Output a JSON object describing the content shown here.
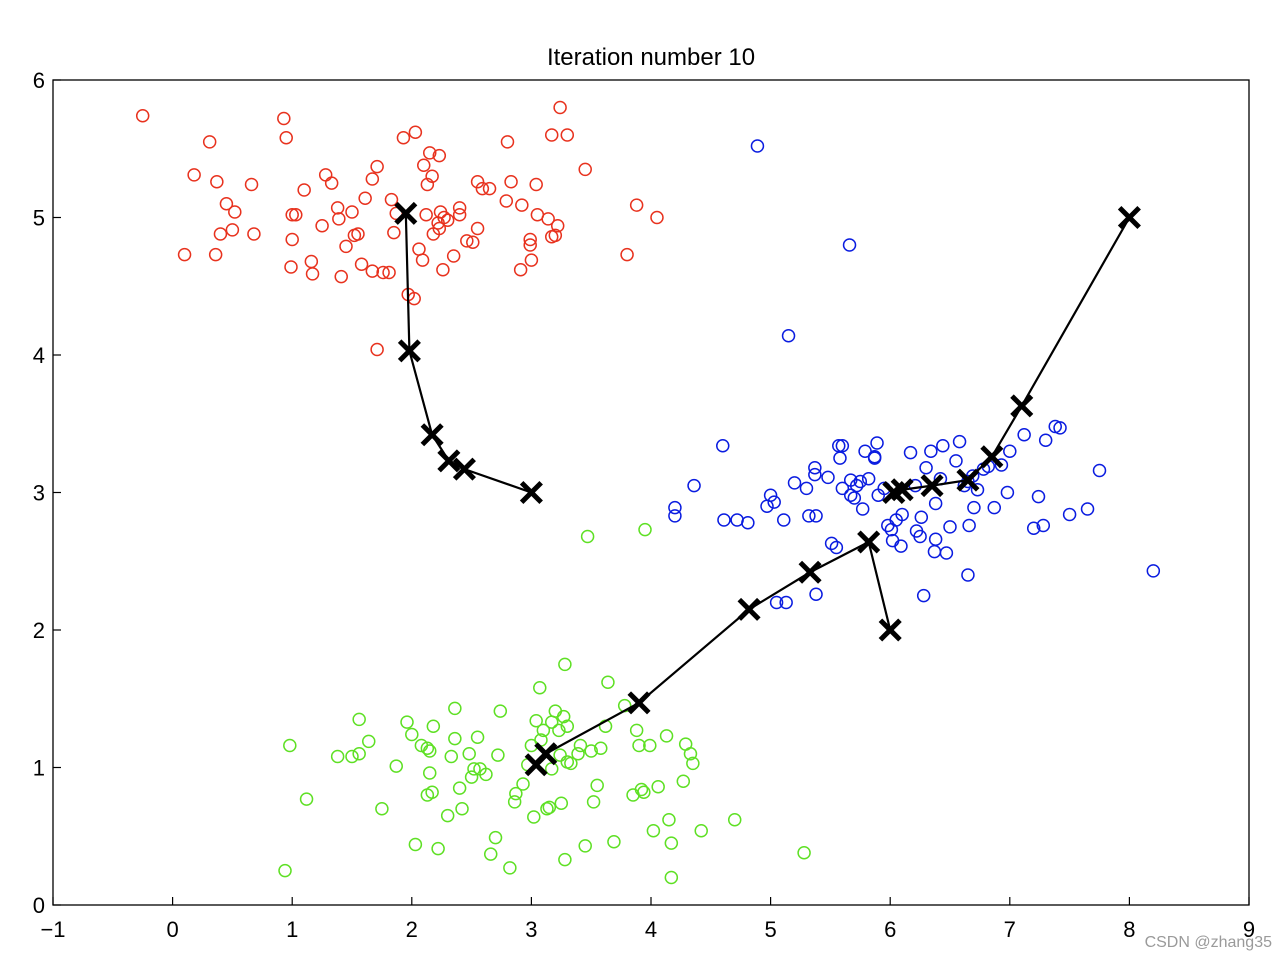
{
  "chart_data": {
    "type": "scatter",
    "title": "Iteration number 10",
    "xlabel": "",
    "ylabel": "",
    "xlim": [
      -1,
      9
    ],
    "ylim": [
      0,
      6
    ],
    "xticks": [
      -1,
      0,
      1,
      2,
      3,
      4,
      5,
      6,
      7,
      8,
      9
    ],
    "yticks": [
      0,
      1,
      2,
      3,
      4,
      5,
      6
    ],
    "grid": false,
    "legend": "none",
    "series": [
      {
        "name": "cluster-1",
        "color": "#e8321e",
        "marker": "circle-open",
        "points": [
          [
            -0.25,
            5.74
          ],
          [
            0.18,
            5.31
          ],
          [
            0.31,
            5.55
          ],
          [
            0.37,
            5.26
          ],
          [
            0.45,
            5.1
          ],
          [
            0.52,
            5.04
          ],
          [
            0.4,
            4.88
          ],
          [
            0.5,
            4.91
          ],
          [
            0.68,
            4.88
          ],
          [
            0.66,
            5.24
          ],
          [
            0.1,
            4.73
          ],
          [
            0.36,
            4.73
          ],
          [
            0.93,
            5.72
          ],
          [
            0.95,
            5.58
          ],
          [
            1.0,
            5.02
          ],
          [
            1.03,
            5.02
          ],
          [
            1.0,
            4.84
          ],
          [
            0.99,
            4.64
          ],
          [
            1.1,
            5.2
          ],
          [
            1.16,
            4.68
          ],
          [
            1.17,
            4.59
          ],
          [
            1.25,
            4.94
          ],
          [
            1.28,
            5.31
          ],
          [
            1.33,
            5.25
          ],
          [
            1.38,
            5.07
          ],
          [
            1.39,
            4.99
          ],
          [
            1.5,
            5.04
          ],
          [
            1.55,
            4.88
          ],
          [
            1.45,
            4.79
          ],
          [
            1.52,
            4.87
          ],
          [
            1.41,
            4.57
          ],
          [
            1.58,
            4.66
          ],
          [
            1.61,
            5.14
          ],
          [
            1.67,
            5.28
          ],
          [
            1.71,
            5.37
          ],
          [
            1.67,
            4.61
          ],
          [
            1.76,
            4.6
          ],
          [
            1.81,
            4.6
          ],
          [
            1.85,
            4.89
          ],
          [
            1.83,
            5.13
          ],
          [
            1.87,
            5.03
          ],
          [
            1.93,
            5.58
          ],
          [
            2.03,
            5.62
          ],
          [
            2.1,
            5.38
          ],
          [
            2.13,
            5.24
          ],
          [
            2.17,
            5.3
          ],
          [
            2.15,
            5.47
          ],
          [
            2.23,
            5.45
          ],
          [
            2.12,
            5.02
          ],
          [
            2.18,
            4.88
          ],
          [
            2.22,
            4.96
          ],
          [
            2.24,
            5.04
          ],
          [
            2.27,
            5.0
          ],
          [
            2.3,
            4.98
          ],
          [
            2.23,
            4.92
          ],
          [
            2.26,
            4.62
          ],
          [
            2.35,
            4.72
          ],
          [
            2.4,
            5.02
          ],
          [
            2.4,
            5.07
          ],
          [
            2.46,
            4.83
          ],
          [
            2.51,
            4.82
          ],
          [
            2.55,
            5.26
          ],
          [
            2.59,
            5.21
          ],
          [
            2.55,
            4.92
          ],
          [
            2.65,
            5.21
          ],
          [
            2.8,
            5.55
          ],
          [
            2.83,
            5.26
          ],
          [
            2.79,
            5.12
          ],
          [
            2.92,
            5.09
          ],
          [
            2.91,
            4.62
          ],
          [
            2.99,
            4.84
          ],
          [
            2.99,
            4.8
          ],
          [
            3.0,
            4.69
          ],
          [
            3.04,
            5.24
          ],
          [
            3.05,
            5.02
          ],
          [
            3.14,
            4.99
          ],
          [
            3.17,
            4.86
          ],
          [
            3.2,
            4.87
          ],
          [
            3.22,
            4.94
          ],
          [
            3.17,
            5.6
          ],
          [
            3.24,
            5.8
          ],
          [
            3.3,
            5.6
          ],
          [
            3.45,
            5.35
          ],
          [
            3.8,
            4.73
          ],
          [
            3.88,
            5.09
          ],
          [
            4.05,
            5.0
          ],
          [
            1.71,
            4.04
          ],
          [
            1.97,
            4.44
          ],
          [
            2.02,
            4.41
          ],
          [
            2.06,
            4.77
          ],
          [
            2.09,
            4.69
          ]
        ]
      },
      {
        "name": "cluster-2",
        "color": "#0a1ce0",
        "marker": "circle-open",
        "points": [
          [
            4.89,
            5.52
          ],
          [
            5.66,
            4.8
          ],
          [
            5.15,
            4.14
          ],
          [
            4.6,
            3.34
          ],
          [
            4.36,
            3.05
          ],
          [
            4.2,
            2.89
          ],
          [
            4.2,
            2.83
          ],
          [
            4.61,
            2.8
          ],
          [
            4.72,
            2.8
          ],
          [
            4.81,
            2.78
          ],
          [
            4.97,
            2.9
          ],
          [
            5.0,
            2.98
          ],
          [
            5.03,
            2.93
          ],
          [
            5.11,
            2.8
          ],
          [
            5.13,
            2.2
          ],
          [
            5.2,
            3.07
          ],
          [
            5.3,
            3.03
          ],
          [
            5.32,
            2.83
          ],
          [
            5.38,
            2.83
          ],
          [
            5.37,
            3.18
          ],
          [
            5.37,
            3.13
          ],
          [
            5.48,
            3.11
          ],
          [
            5.51,
            2.63
          ],
          [
            5.57,
            3.34
          ],
          [
            5.6,
            3.34
          ],
          [
            5.6,
            3.03
          ],
          [
            5.58,
            3.25
          ],
          [
            5.55,
            2.6
          ],
          [
            5.67,
            3.09
          ],
          [
            5.67,
            2.98
          ],
          [
            5.7,
            2.96
          ],
          [
            5.72,
            3.05
          ],
          [
            5.75,
            3.08
          ],
          [
            5.77,
            2.88
          ],
          [
            5.79,
            3.3
          ],
          [
            5.82,
            3.1
          ],
          [
            5.87,
            3.26
          ],
          [
            5.89,
            3.36
          ],
          [
            5.87,
            3.25
          ],
          [
            5.9,
            2.98
          ],
          [
            5.95,
            3.03
          ],
          [
            5.98,
            2.76
          ],
          [
            6.01,
            2.73
          ],
          [
            6.02,
            2.65
          ],
          [
            6.05,
            2.8
          ],
          [
            6.09,
            2.61
          ],
          [
            6.1,
            2.84
          ],
          [
            6.17,
            3.29
          ],
          [
            6.21,
            3.05
          ],
          [
            6.22,
            2.72
          ],
          [
            6.25,
            2.68
          ],
          [
            6.26,
            2.82
          ],
          [
            6.3,
            3.18
          ],
          [
            6.34,
            3.3
          ],
          [
            6.37,
            2.57
          ],
          [
            6.38,
            2.66
          ],
          [
            6.38,
            2.92
          ],
          [
            6.42,
            3.1
          ],
          [
            6.44,
            3.34
          ],
          [
            6.47,
            2.56
          ],
          [
            6.5,
            2.75
          ],
          [
            6.55,
            3.23
          ],
          [
            6.58,
            3.37
          ],
          [
            6.62,
            3.05
          ],
          [
            6.65,
            3.08
          ],
          [
            6.66,
            2.76
          ],
          [
            6.69,
            3.12
          ],
          [
            6.7,
            2.89
          ],
          [
            6.73,
            3.02
          ],
          [
            6.78,
            3.17
          ],
          [
            6.82,
            3.19
          ],
          [
            6.87,
            2.89
          ],
          [
            6.93,
            3.2
          ],
          [
            6.98,
            3.0
          ],
          [
            7.0,
            3.3
          ],
          [
            7.12,
            3.42
          ],
          [
            7.2,
            2.74
          ],
          [
            7.24,
            2.97
          ],
          [
            7.28,
            2.76
          ],
          [
            7.3,
            3.38
          ],
          [
            7.38,
            3.48
          ],
          [
            7.42,
            3.47
          ],
          [
            7.5,
            2.84
          ],
          [
            7.65,
            2.88
          ],
          [
            7.75,
            3.16
          ],
          [
            8.2,
            2.43
          ],
          [
            6.28,
            2.25
          ],
          [
            6.65,
            2.4
          ],
          [
            5.38,
            2.26
          ],
          [
            5.05,
            2.2
          ]
        ]
      },
      {
        "name": "cluster-3",
        "color": "#5ee024",
        "marker": "circle-open",
        "points": [
          [
            3.47,
            2.68
          ],
          [
            3.95,
            2.73
          ],
          [
            0.98,
            1.16
          ],
          [
            0.94,
            0.25
          ],
          [
            1.12,
            0.77
          ],
          [
            1.38,
            1.08
          ],
          [
            1.5,
            1.08
          ],
          [
            1.56,
            1.35
          ],
          [
            1.56,
            1.1
          ],
          [
            1.64,
            1.19
          ],
          [
            1.75,
            0.7
          ],
          [
            1.87,
            1.01
          ],
          [
            1.96,
            1.33
          ],
          [
            2.0,
            1.24
          ],
          [
            2.03,
            0.44
          ],
          [
            2.08,
            1.16
          ],
          [
            2.13,
            0.8
          ],
          [
            2.13,
            1.14
          ],
          [
            2.15,
            0.96
          ],
          [
            2.15,
            1.12
          ],
          [
            2.17,
            0.82
          ],
          [
            2.18,
            1.3
          ],
          [
            2.22,
            0.41
          ],
          [
            2.3,
            0.65
          ],
          [
            2.33,
            1.08
          ],
          [
            2.36,
            1.21
          ],
          [
            2.36,
            1.43
          ],
          [
            2.4,
            0.85
          ],
          [
            2.42,
            0.7
          ],
          [
            2.48,
            1.1
          ],
          [
            2.5,
            0.93
          ],
          [
            2.52,
            0.99
          ],
          [
            2.55,
            1.22
          ],
          [
            2.57,
            0.99
          ],
          [
            2.62,
            0.95
          ],
          [
            2.66,
            0.37
          ],
          [
            2.7,
            0.49
          ],
          [
            2.72,
            1.09
          ],
          [
            2.74,
            1.41
          ],
          [
            2.82,
            0.27
          ],
          [
            2.86,
            0.75
          ],
          [
            2.87,
            0.81
          ],
          [
            2.93,
            0.88
          ],
          [
            2.97,
            1.02
          ],
          [
            3.0,
            1.16
          ],
          [
            3.02,
            0.64
          ],
          [
            3.04,
            1.34
          ],
          [
            3.07,
            1.58
          ],
          [
            3.08,
            1.2
          ],
          [
            3.1,
            1.27
          ],
          [
            3.13,
            0.7
          ],
          [
            3.15,
            0.71
          ],
          [
            3.17,
            0.99
          ],
          [
            3.17,
            1.33
          ],
          [
            3.2,
            1.41
          ],
          [
            3.23,
            1.27
          ],
          [
            3.24,
            1.09
          ],
          [
            3.25,
            0.74
          ],
          [
            3.27,
            1.37
          ],
          [
            3.28,
            1.75
          ],
          [
            3.3,
            1.3
          ],
          [
            3.3,
            1.04
          ],
          [
            3.33,
            1.03
          ],
          [
            3.39,
            1.1
          ],
          [
            3.41,
            1.16
          ],
          [
            3.45,
            0.43
          ],
          [
            3.5,
            1.12
          ],
          [
            3.52,
            0.75
          ],
          [
            3.55,
            0.87
          ],
          [
            3.58,
            1.14
          ],
          [
            3.62,
            1.3
          ],
          [
            3.64,
            1.62
          ],
          [
            3.69,
            0.46
          ],
          [
            3.78,
            1.45
          ],
          [
            3.85,
            0.8
          ],
          [
            3.88,
            1.27
          ],
          [
            3.9,
            1.16
          ],
          [
            3.92,
            0.84
          ],
          [
            3.94,
            0.82
          ],
          [
            3.99,
            1.16
          ],
          [
            4.02,
            0.54
          ],
          [
            4.06,
            0.86
          ],
          [
            4.13,
            1.23
          ],
          [
            4.15,
            0.62
          ],
          [
            4.17,
            0.45
          ],
          [
            4.27,
            0.9
          ],
          [
            4.29,
            1.17
          ],
          [
            4.33,
            1.1
          ],
          [
            4.35,
            1.03
          ],
          [
            4.42,
            0.54
          ],
          [
            4.7,
            0.62
          ],
          [
            5.28,
            0.38
          ],
          [
            4.17,
            0.2
          ],
          [
            3.28,
            0.33
          ]
        ]
      }
    ],
    "centroid_paths": [
      {
        "name": "centroid-path-1",
        "color": "#000000",
        "marker": "x-bold",
        "points": [
          [
            3.0,
            3.0
          ],
          [
            2.44,
            3.17
          ],
          [
            2.31,
            3.23
          ],
          [
            2.17,
            3.42
          ],
          [
            1.98,
            4.03
          ],
          [
            1.95,
            5.03
          ]
        ]
      },
      {
        "name": "centroid-path-2",
        "color": "#000000",
        "marker": "x-bold",
        "points": [
          [
            8.0,
            5.0
          ],
          [
            7.1,
            3.63
          ],
          [
            6.85,
            3.26
          ],
          [
            6.65,
            3.09
          ],
          [
            6.35,
            3.05
          ],
          [
            6.1,
            3.02
          ],
          [
            6.03,
            3.0
          ]
        ]
      },
      {
        "name": "centroid-path-3",
        "color": "#000000",
        "marker": "x-bold",
        "points": [
          [
            6.0,
            2.0
          ],
          [
            5.82,
            2.64
          ],
          [
            5.33,
            2.42
          ],
          [
            4.82,
            2.15
          ],
          [
            3.9,
            1.47
          ],
          [
            3.12,
            1.1
          ],
          [
            3.04,
            1.02
          ]
        ]
      }
    ]
  },
  "watermark": "CSDN @zhang35"
}
